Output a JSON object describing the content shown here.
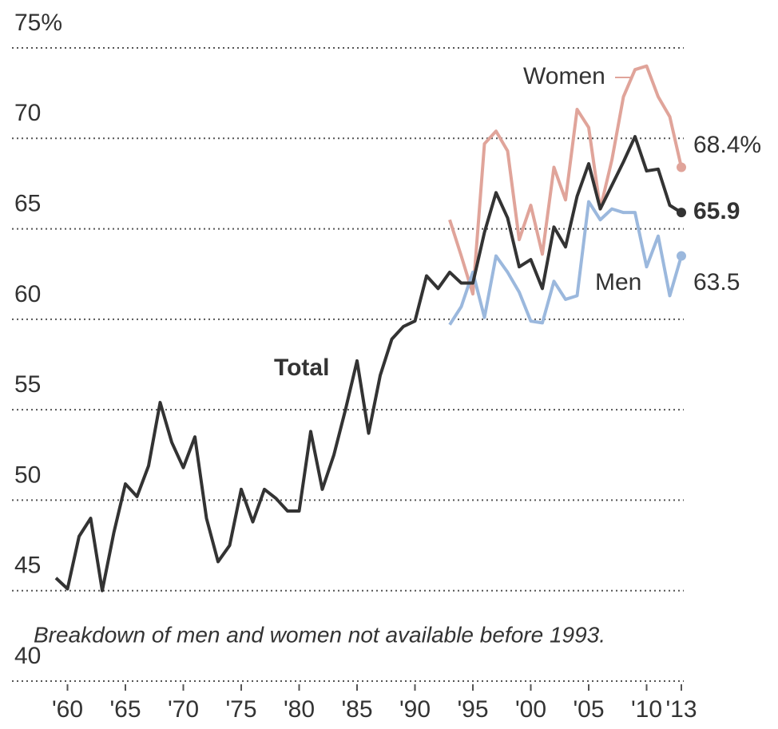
{
  "chart_data": {
    "type": "line",
    "x": [
      1959,
      1960,
      1961,
      1962,
      1963,
      1964,
      1965,
      1966,
      1967,
      1968,
      1969,
      1970,
      1971,
      1972,
      1973,
      1974,
      1975,
      1976,
      1977,
      1978,
      1979,
      1980,
      1981,
      1982,
      1983,
      1984,
      1985,
      1986,
      1987,
      1988,
      1989,
      1990,
      1991,
      1992,
      1993,
      1994,
      1995,
      1996,
      1997,
      1998,
      1999,
      2000,
      2001,
      2002,
      2003,
      2004,
      2005,
      2006,
      2007,
      2008,
      2009,
      2010,
      2011,
      2012,
      2013
    ],
    "series": [
      {
        "name": "Total",
        "color": "#333333",
        "end_label": "65.9",
        "values": [
          45.7,
          45.1,
          48.0,
          49.0,
          45.0,
          48.2,
          50.9,
          50.2,
          51.9,
          55.4,
          53.2,
          51.8,
          53.5,
          49.0,
          46.6,
          47.5,
          50.6,
          48.8,
          50.6,
          50.1,
          49.4,
          49.4,
          53.8,
          50.6,
          52.5,
          55.0,
          57.7,
          53.7,
          56.9,
          58.9,
          59.6,
          59.9,
          62.4,
          61.7,
          62.6,
          62.0,
          62.0,
          64.8,
          67.0,
          65.6,
          62.9,
          63.3,
          61.7,
          65.1,
          64.0,
          66.8,
          68.6,
          66.1,
          67.4,
          68.7,
          70.1,
          68.2,
          68.3,
          66.3,
          65.9
        ]
      },
      {
        "name": "Women",
        "color": "#e0a49a",
        "end_label": "68.4%",
        "values": [
          null,
          null,
          null,
          null,
          null,
          null,
          null,
          null,
          null,
          null,
          null,
          null,
          null,
          null,
          null,
          null,
          null,
          null,
          null,
          null,
          null,
          null,
          null,
          null,
          null,
          null,
          null,
          null,
          null,
          null,
          null,
          null,
          null,
          null,
          65.5,
          63.5,
          61.4,
          69.7,
          70.4,
          69.3,
          64.4,
          66.3,
          63.6,
          68.4,
          66.6,
          71.6,
          70.6,
          66.1,
          68.8,
          72.3,
          73.8,
          74.0,
          72.3,
          71.2,
          68.4
        ]
      },
      {
        "name": "Men",
        "color": "#9bb8dd",
        "end_label": "63.5",
        "values": [
          null,
          null,
          null,
          null,
          null,
          null,
          null,
          null,
          null,
          null,
          null,
          null,
          null,
          null,
          null,
          null,
          null,
          null,
          null,
          null,
          null,
          null,
          null,
          null,
          null,
          null,
          null,
          null,
          null,
          null,
          null,
          null,
          null,
          null,
          59.7,
          60.7,
          62.6,
          60.1,
          63.5,
          62.6,
          61.5,
          59.9,
          59.8,
          62.1,
          61.1,
          61.3,
          66.5,
          65.5,
          66.1,
          65.9,
          65.9,
          62.9,
          64.6,
          61.3,
          63.5
        ]
      }
    ],
    "annotation": "Breakdown of men and women not available before 1993.",
    "xlim": [
      1959,
      2013
    ],
    "xticks": [
      {
        "value": 1960,
        "label": "'60"
      },
      {
        "value": 1965,
        "label": "'65"
      },
      {
        "value": 1970,
        "label": "'70"
      },
      {
        "value": 1975,
        "label": "'75"
      },
      {
        "value": 1980,
        "label": "'80"
      },
      {
        "value": 1985,
        "label": "'85"
      },
      {
        "value": 1990,
        "label": "'90"
      },
      {
        "value": 1995,
        "label": "'95"
      },
      {
        "value": 2000,
        "label": "'00"
      },
      {
        "value": 2005,
        "label": "'05"
      },
      {
        "value": 2010,
        "label": "'10"
      },
      {
        "value": 2013,
        "label": "'13"
      }
    ],
    "ylim": [
      40,
      75
    ],
    "yticks": [
      40,
      45,
      50,
      55,
      60,
      65,
      70,
      {
        "value": 75,
        "label": "75%"
      }
    ],
    "grid": true
  }
}
